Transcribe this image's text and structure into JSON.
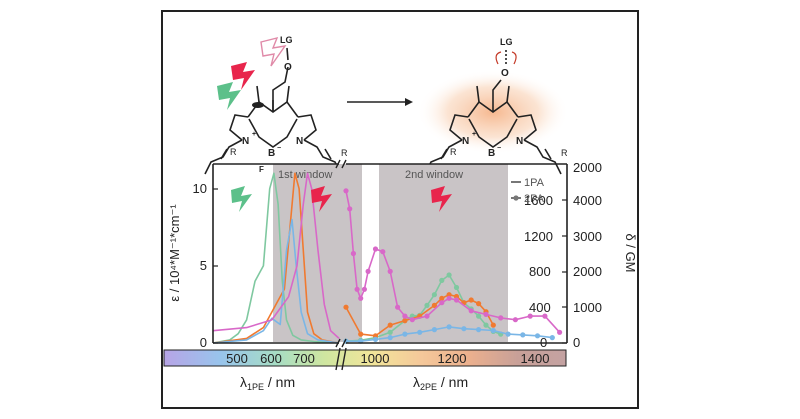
{
  "scheme": {
    "substituent_label": "LG",
    "oxygen_label": "O",
    "nitrogen_left": "N",
    "nitrogen_right": "N",
    "charge_plus": "+",
    "boron": "B",
    "boron_charge": "−",
    "fluorine_a": "F",
    "fluorine_b": "F",
    "r_left": "R",
    "r_right": "R",
    "after_substituent_label": "LG",
    "after_oxygen_label": "O"
  },
  "chart_data": {
    "type": "line",
    "left_axis": {
      "label": "ε / 10⁴*M⁻¹*cm⁻¹",
      "ticks": [
        "0",
        "5",
        "10"
      ],
      "ylim": [
        0,
        11.6
      ]
    },
    "right_axis": {
      "label": "δ / GM",
      "ticks_inner": [
        "0",
        "400",
        "800",
        "1200",
        "1600",
        "2000"
      ],
      "ticks_outer": [
        "0",
        "1000",
        "2000",
        "3000",
        "4000"
      ],
      "ylim": [
        0,
        2000
      ]
    },
    "x_axis": {
      "segment1": {
        "label": "λ1PE / nm",
        "main": "λ",
        "sub": "1PE",
        "unit": " / nm",
        "ticks": [
          "500",
          "600",
          "700"
        ],
        "xlim": [
          480,
          780
        ]
      },
      "segment2": {
        "label": "λ2PE / nm",
        "main": "λ",
        "sub": "2PE",
        "unit": " / nm",
        "ticks": [
          "1000",
          "1200",
          "1400"
        ],
        "xlim": [
          960,
          1560
        ]
      }
    },
    "windows": [
      {
        "label": "1st window",
        "segment": 1,
        "from": 650,
        "to": 780
      },
      {
        "label": "2nd window",
        "segment": 2,
        "from": 1000,
        "to": 1350
      }
    ],
    "legend": {
      "placement": "top-right",
      "items": [
        {
          "label": "1PA",
          "marker": "line"
        },
        {
          "label": "2PA",
          "marker": "dot-line"
        }
      ]
    },
    "colors": {
      "green": "#7fc8a0",
      "orange": "#f07a30",
      "blue": "#7ab6e6",
      "pink": "#d868c8",
      "window": "#c9c4c6",
      "lightning_green": "#5cc08a",
      "lightning_red": "#e8254c",
      "lightning_pink": "#e08aa8"
    },
    "series_1pa": [
      {
        "color": "green",
        "x": [
          480,
          520,
          540,
          560,
          580,
          600,
          615,
          625,
          635,
          645,
          655,
          670,
          690,
          720,
          780
        ],
        "y": [
          0,
          0.2,
          0.6,
          1.5,
          4,
          5,
          10,
          11,
          9,
          4,
          1.5,
          0.5,
          0.2,
          0.1,
          0
        ]
      },
      {
        "color": "orange",
        "x": [
          480,
          560,
          600,
          630,
          650,
          665,
          675,
          685,
          695,
          705,
          720,
          740,
          780
        ],
        "y": [
          0,
          0.3,
          1,
          2.5,
          3.5,
          8,
          11,
          10,
          6,
          2,
          0.6,
          0.2,
          0
        ]
      },
      {
        "color": "blue",
        "x": [
          480,
          560,
          600,
          620,
          640,
          655,
          668,
          678,
          690,
          705,
          730,
          780
        ],
        "y": [
          0,
          0.2,
          0.8,
          1.6,
          1.2,
          6,
          8,
          5,
          2,
          0.6,
          0.2,
          0
        ]
      },
      {
        "color": "pink",
        "x": [
          480,
          560,
          620,
          660,
          680,
          695,
          705,
          715,
          730,
          745,
          760,
          780
        ],
        "y": [
          0.8,
          1,
          1.5,
          3,
          5,
          9,
          11,
          10,
          6,
          2.5,
          0.8,
          0.3
        ]
      }
    ],
    "series_2pa": [
      {
        "color": "green",
        "x": [
          960,
          1000,
          1040,
          1080,
          1120,
          1140,
          1160,
          1180,
          1200,
          1220,
          1240,
          1260,
          1280,
          1300,
          1320,
          1340,
          1360,
          1380
        ],
        "y": [
          20,
          30,
          60,
          120,
          250,
          300,
          310,
          420,
          540,
          700,
          760,
          620,
          450,
          380,
          300,
          200,
          130,
          100
        ]
      },
      {
        "color": "orange",
        "x": [
          960,
          1000,
          1040,
          1080,
          1120,
          1160,
          1200,
          1220,
          1240,
          1260,
          1280,
          1300,
          1320,
          1340,
          1360
        ],
        "y": [
          400,
          100,
          80,
          200,
          250,
          300,
          420,
          500,
          540,
          520,
          450,
          480,
          440,
          350,
          200
        ]
      },
      {
        "color": "blue",
        "x": [
          960,
          1000,
          1040,
          1080,
          1120,
          1160,
          1200,
          1240,
          1280,
          1320,
          1360,
          1400,
          1440,
          1480,
          1520
        ],
        "y": [
          20,
          20,
          40,
          60,
          100,
          120,
          150,
          180,
          160,
          150,
          140,
          100,
          90,
          80,
          60
        ]
      },
      {
        "color": "pink",
        "x": [
          960,
          970,
          980,
          990,
          1000,
          1010,
          1020,
          1040,
          1060,
          1080,
          1100,
          1120,
          1140,
          1180,
          1220,
          1240,
          1260,
          1300,
          1340,
          1380,
          1420,
          1460,
          1500,
          1540
        ],
        "y": [
          1700,
          1500,
          1000,
          600,
          500,
          600,
          800,
          1050,
          1020,
          800,
          400,
          300,
          260,
          300,
          450,
          500,
          480,
          360,
          320,
          280,
          260,
          300,
          300,
          120
        ]
      }
    ]
  }
}
